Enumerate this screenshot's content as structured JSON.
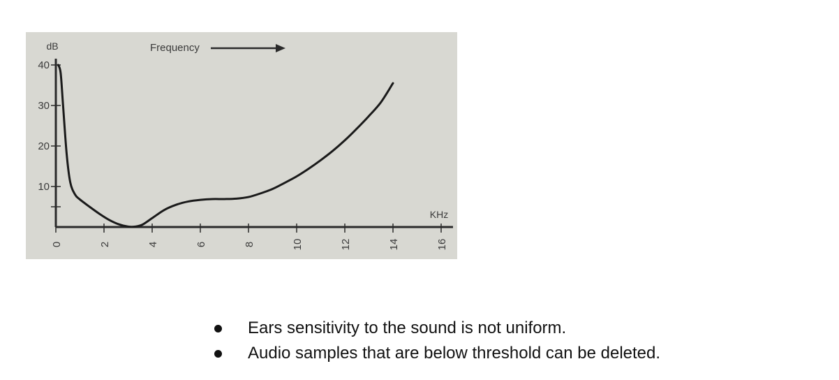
{
  "chart_data": {
    "type": "line",
    "x_unit": "KHz",
    "y_unit": "dB",
    "annotation": "Frequency",
    "xlim": [
      0,
      16
    ],
    "ylim": [
      0,
      40
    ],
    "x_ticks": [
      0,
      2,
      4,
      6,
      8,
      10,
      12,
      14,
      16
    ],
    "y_ticks": [
      10,
      20,
      30,
      40
    ],
    "y_tick_labels": [
      "10",
      "20",
      "30",
      "40"
    ],
    "x_tick_labels": [
      "0",
      "2",
      "4",
      "6",
      "8",
      "10",
      "12",
      "14",
      "16"
    ],
    "minor_y_ticks": [
      5
    ],
    "grid": false,
    "series": [
      {
        "x": [
          0.1,
          0.2,
          0.3,
          0.45,
          0.6,
          0.8,
          1.0,
          1.4,
          1.8,
          2.2,
          2.6,
          3.0,
          3.3,
          3.6,
          4.0,
          4.5,
          5.0,
          5.5,
          6.0,
          6.5,
          7.0,
          7.5,
          8.0,
          8.5,
          9.0,
          9.5,
          10.0,
          10.5,
          11.0,
          11.5,
          12.0,
          12.5,
          13.0,
          13.5,
          14.0
        ],
        "y": [
          40,
          38,
          30,
          18,
          11,
          8,
          6.8,
          5,
          3.3,
          1.8,
          0.7,
          0.1,
          0.1,
          0.6,
          2.2,
          4.2,
          5.5,
          6.3,
          6.7,
          6.9,
          6.9,
          7.0,
          7.4,
          8.3,
          9.4,
          10.9,
          12.5,
          14.4,
          16.5,
          18.8,
          21.4,
          24.3,
          27.4,
          30.8,
          35.5
        ]
      }
    ]
  },
  "colors": {
    "panel_background": "#d8d8d2",
    "curve": "#1a1a1a",
    "axis": "#2a2a2a",
    "text": "#111111"
  },
  "bullets": [
    "Ears sensitivity to the sound is not uniform.",
    "Audio samples that are below threshold can be deleted."
  ]
}
